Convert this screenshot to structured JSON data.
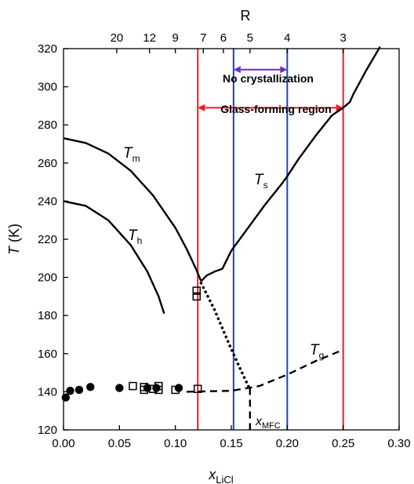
{
  "chart_data": {
    "type": "line",
    "xlabel": {
      "main": "x",
      "sub": "LiCl"
    },
    "ylabel": {
      "main": "T",
      "rest": " (K)"
    },
    "top_axis_label": "R",
    "xlim": [
      0.0,
      0.3
    ],
    "ylim": [
      120,
      320
    ],
    "x_ticks": [
      0.0,
      0.05,
      0.1,
      0.15,
      0.2,
      0.25,
      0.3
    ],
    "x_tick_labels": [
      "0.00",
      "0.05",
      "0.10",
      "0.15",
      "0.20",
      "0.25",
      "0.30"
    ],
    "y_ticks": [
      120,
      140,
      160,
      180,
      200,
      220,
      240,
      260,
      280,
      300,
      320
    ],
    "y_tick_labels": [
      "120",
      "140",
      "160",
      "180",
      "200",
      "220",
      "240",
      "260",
      "280",
      "300",
      "320"
    ],
    "top_ticks": [
      {
        "label": "20",
        "x": 0.0476
      },
      {
        "label": "12",
        "x": 0.0769
      },
      {
        "label": "9",
        "x": 0.1
      },
      {
        "label": "7",
        "x": 0.125
      },
      {
        "label": "6",
        "x": 0.1429
      },
      {
        "label": "5",
        "x": 0.1667
      },
      {
        "label": "4",
        "x": 0.2
      },
      {
        "label": "3",
        "x": 0.25
      }
    ],
    "top_tick_positions": [
      0.0476,
      0.0769,
      0.1,
      0.125,
      0.1429,
      0.1667,
      0.2,
      0.25
    ],
    "series": [
      {
        "key": "Tm",
        "style": "solid",
        "x": [
          0.0,
          0.02,
          0.04,
          0.06,
          0.08,
          0.1,
          0.11,
          0.118,
          0.123
        ],
        "y": [
          273,
          270.5,
          265,
          256,
          243,
          226,
          215,
          205,
          198
        ]
      },
      {
        "key": "Th",
        "style": "solid",
        "x": [
          0.0,
          0.02,
          0.04,
          0.06,
          0.075,
          0.085,
          0.09
        ],
        "y": [
          240,
          237.5,
          230,
          217,
          203,
          190,
          181
        ]
      },
      {
        "key": "Ts",
        "style": "solid",
        "x": [
          0.123,
          0.128,
          0.135,
          0.142,
          0.15,
          0.165,
          0.18,
          0.195,
          0.2,
          0.21,
          0.225,
          0.24,
          0.25,
          0.256,
          0.259,
          0.27,
          0.283
        ],
        "y": [
          198,
          201,
          203,
          204.5,
          214,
          226,
          238,
          249,
          253,
          262,
          274,
          285,
          289,
          292,
          296,
          308,
          321
        ]
      },
      {
        "key": "Ts_extrapolated",
        "style": "dotted",
        "x": [
          0.123,
          0.135,
          0.148,
          0.158,
          0.166
        ],
        "y": [
          197,
          183,
          165,
          152,
          142
        ]
      },
      {
        "key": "Tg",
        "style": "dashed",
        "x": [
          0.11,
          0.15,
          0.175,
          0.2,
          0.225,
          0.25
        ],
        "y": [
          140,
          140.5,
          143,
          149,
          156,
          162
        ]
      },
      {
        "key": "xMFC_marker",
        "style": "dashed",
        "x": [
          0.1667,
          0.1667
        ],
        "y": [
          142,
          120
        ]
      }
    ],
    "points_filled": [
      {
        "x": 0.002,
        "y": 137
      },
      {
        "x": 0.006,
        "y": 140.5
      },
      {
        "x": 0.014,
        "y": 141
      },
      {
        "x": 0.024,
        "y": 142.5
      },
      {
        "x": 0.05,
        "y": 142
      },
      {
        "x": 0.075,
        "y": 142
      },
      {
        "x": 0.083,
        "y": 142
      },
      {
        "x": 0.103,
        "y": 142
      }
    ],
    "points_open": [
      {
        "x": 0.062,
        "y": 143
      },
      {
        "x": 0.072,
        "y": 142.5
      },
      {
        "x": 0.072,
        "y": 141
      },
      {
        "x": 0.08,
        "y": 141.5
      },
      {
        "x": 0.085,
        "y": 143
      },
      {
        "x": 0.085,
        "y": 141
      },
      {
        "x": 0.1,
        "y": 141
      },
      {
        "x": 0.12,
        "y": 141.5
      },
      {
        "x": 0.119,
        "y": 193
      },
      {
        "x": 0.119,
        "y": 190
      }
    ],
    "vertical_lines": [
      {
        "x": 0.12,
        "color": "#ee1c25"
      },
      {
        "x": 0.25,
        "color": "#ee1c25"
      },
      {
        "x": 0.152,
        "color": "#1f3fc4"
      },
      {
        "x": 0.2,
        "color": "#1f3fc4"
      }
    ],
    "arrows": [
      {
        "x1": 0.152,
        "x2": 0.2,
        "y": 309,
        "color": "#6b2bd9"
      },
      {
        "x1": 0.12,
        "x2": 0.25,
        "y": 289,
        "color": "#ee1c25"
      }
    ],
    "annotations": {
      "no_crystallization": "No crystallization",
      "glass_forming": "Glass-forming region",
      "Tm": {
        "main": "T",
        "sub": "m"
      },
      "Th": {
        "main": "T",
        "sub": "h"
      },
      "Ts": {
        "main": "T",
        "sub": "s"
      },
      "Tg": {
        "main": "T",
        "sub": "g"
      },
      "xMFC": {
        "main": "x",
        "sub": "MFC"
      }
    },
    "colors": {
      "red": "#ee1c25",
      "blue": "#1f3fc4",
      "purple": "#6b2bd9"
    }
  }
}
